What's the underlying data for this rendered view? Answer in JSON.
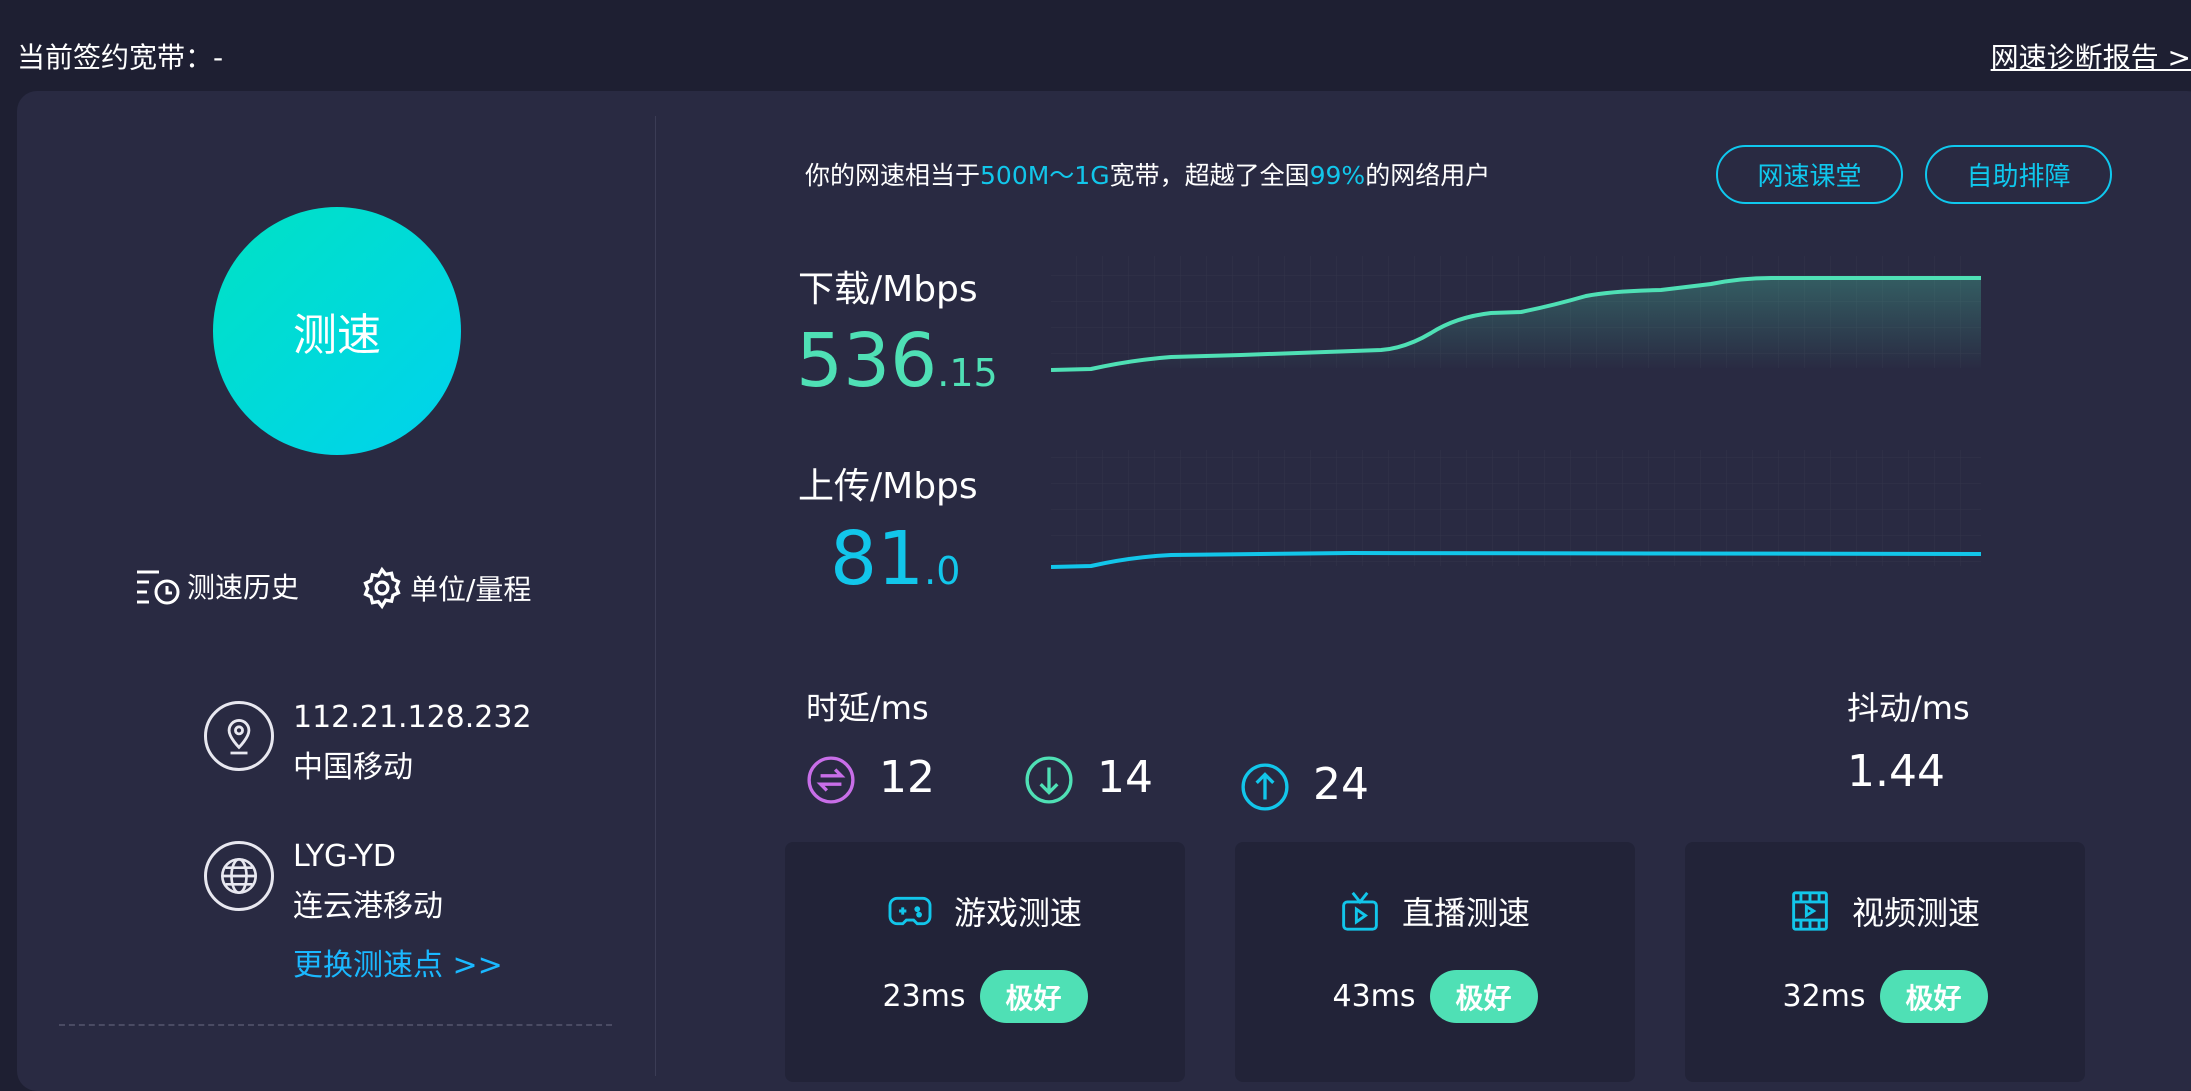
{
  "header": {
    "contract_label": "当前签约宽带：-",
    "report_link": "网速诊断报告 >"
  },
  "left": {
    "start_button": "测速",
    "history": "测速历史",
    "units": "单位/量程",
    "ip": "112.21.128.232",
    "isp": "中国移动",
    "node_code": "LYG-YD",
    "node_name": "连云港移动",
    "change_node": "更换测速点 >>"
  },
  "summary": {
    "prefix": "你的网速相当于",
    "tier": "500M～1G",
    "mid": "宽带，超越了全国",
    "percent": "99%",
    "suffix": "的网络用户"
  },
  "buttons": {
    "course": "网速课堂",
    "troubleshoot": "自助排障"
  },
  "download": {
    "label": "下载/Mbps",
    "int": "536",
    "dec": ".15",
    "color": "#4fe0b5"
  },
  "upload": {
    "label": "上传/Mbps",
    "int": "81",
    "dec": ".0",
    "color": "#12c6ea"
  },
  "latency": {
    "label": "时延/ms",
    "idle": "12",
    "down": "14",
    "up": "24"
  },
  "jitter": {
    "label": "抖动/ms",
    "value": "1.44"
  },
  "cards": [
    {
      "title": "游戏测速",
      "latency": "23ms",
      "rating": "极好"
    },
    {
      "title": "直播测速",
      "latency": "43ms",
      "rating": "极好"
    },
    {
      "title": "视频测速",
      "latency": "32ms",
      "rating": "极好"
    }
  ]
}
